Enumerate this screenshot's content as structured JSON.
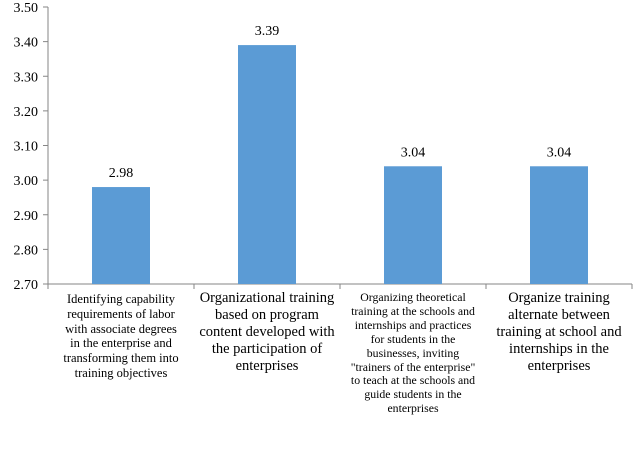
{
  "chart_data": {
    "type": "bar",
    "title": "",
    "xlabel": "",
    "ylabel": "",
    "ylim": [
      2.7,
      3.5
    ],
    "yticks": [
      "2.70",
      "2.80",
      "2.90",
      "3.00",
      "3.10",
      "3.20",
      "3.30",
      "3.40",
      "3.50"
    ],
    "grid": false,
    "bar_color": "#5b9bd5",
    "categories": [
      "Identifying capability requirements of labor with associate degrees in the enterprise and transforming them into training objectives",
      "Organizational training based on program content developed with the participation of enterprises",
      "Organizing theoretical training at the schools and internships and practices for students in the businesses, inviting \"trainers of the enterprise\" to teach at the schools and guide students in the enterprises",
      "Organize training alternate between training at school and internships in the enterprises"
    ],
    "values": [
      2.98,
      3.39,
      3.04,
      3.04
    ],
    "data_labels": [
      "2.98",
      "3.39",
      "3.04",
      "3.04"
    ]
  }
}
